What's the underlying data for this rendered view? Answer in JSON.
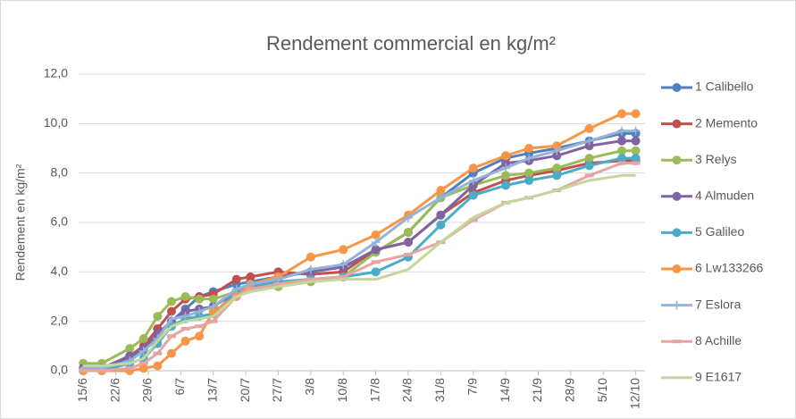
{
  "chart_data": {
    "type": "line",
    "title": "Rendement commercial en kg/m²",
    "ylabel": "Rendement en kg/m²",
    "x": [
      "15/6",
      "19/6",
      "25/6",
      "28/6",
      "1/7",
      "4/7",
      "7/7",
      "10/7",
      "13/7",
      "18/7",
      "21/7",
      "27/7",
      "3/8",
      "10/8",
      "17/8",
      "24/8",
      "31/8",
      "7/9",
      "14/9",
      "19/9",
      "25/9",
      "2/10",
      "9/10",
      "12/10"
    ],
    "xlim": [
      "14/6",
      "14/10"
    ],
    "xticks": [
      "15/6",
      "22/6",
      "29/6",
      "6/7",
      "13/7",
      "20/7",
      "27/7",
      "3/8",
      "10/8",
      "17/8",
      "24/8",
      "31/8",
      "7/9",
      "14/9",
      "21/9",
      "28/9",
      "5/10",
      "12/10"
    ],
    "ylim": [
      0,
      12
    ],
    "yticks": [
      {
        "value": 0,
        "label": "0,0"
      },
      {
        "value": 2,
        "label": "2,0"
      },
      {
        "value": 4,
        "label": "4,0"
      },
      {
        "value": 6,
        "label": "6,0"
      },
      {
        "value": 8,
        "label": "8,0"
      },
      {
        "value": 10,
        "label": "10,0"
      },
      {
        "value": 12,
        "label": "12,0"
      }
    ],
    "grid": true,
    "legend": "right",
    "series": [
      {
        "name": "1 Calibello",
        "color": "#4f81bd",
        "marker": "circle",
        "values": [
          0.1,
          0.1,
          0.5,
          0.8,
          1.4,
          2.0,
          2.5,
          3.0,
          3.2,
          3.5,
          3.6,
          3.8,
          4.0,
          4.2,
          4.8,
          5.6,
          7.0,
          8.0,
          8.6,
          8.8,
          9.0,
          9.3,
          9.6,
          9.6
        ]
      },
      {
        "name": "2 Memento",
        "color": "#c0504d",
        "marker": "circle",
        "values": [
          0.1,
          0.1,
          0.6,
          1.0,
          1.7,
          2.4,
          2.9,
          3.0,
          3.1,
          3.7,
          3.8,
          4.0,
          3.9,
          4.0,
          4.9,
          5.2,
          6.3,
          7.2,
          7.7,
          7.9,
          8.1,
          8.4,
          8.5,
          8.5
        ]
      },
      {
        "name": "3 Relys",
        "color": "#9bbb59",
        "marker": "circle",
        "values": [
          0.3,
          0.3,
          0.9,
          1.3,
          2.2,
          2.8,
          3.0,
          2.9,
          2.9,
          3.2,
          3.4,
          3.4,
          3.6,
          3.8,
          4.8,
          5.6,
          7.0,
          7.5,
          7.9,
          8.0,
          8.2,
          8.6,
          8.9,
          8.9
        ]
      },
      {
        "name": "4 Almuden",
        "color": "#8064a2",
        "marker": "circle",
        "values": [
          0.1,
          0.1,
          0.6,
          0.9,
          1.5,
          2.0,
          2.4,
          2.5,
          2.6,
          3.2,
          3.5,
          3.8,
          4.0,
          4.2,
          4.9,
          5.2,
          6.3,
          7.5,
          8.4,
          8.5,
          8.7,
          9.1,
          9.3,
          9.3
        ]
      },
      {
        "name": "5 Galileo",
        "color": "#4bacc6",
        "marker": "circle",
        "values": [
          0.0,
          0.0,
          0.3,
          0.5,
          1.1,
          1.8,
          2.1,
          2.2,
          2.3,
          3.2,
          3.4,
          3.6,
          3.7,
          3.8,
          4.0,
          4.6,
          5.9,
          7.1,
          7.5,
          7.7,
          7.9,
          8.3,
          8.6,
          8.6
        ]
      },
      {
        "name": "6 Lw133266",
        "color": "#f79646",
        "marker": "circle",
        "values": [
          0.0,
          0.0,
          0.0,
          0.1,
          0.2,
          0.7,
          1.2,
          1.4,
          2.4,
          3.0,
          3.5,
          3.8,
          4.6,
          4.9,
          5.5,
          6.3,
          7.3,
          8.2,
          8.7,
          9.0,
          9.1,
          9.8,
          10.4,
          10.4
        ]
      },
      {
        "name": "7 Eslora",
        "color": "#95b3d7",
        "marker": "plus",
        "values": [
          0.1,
          0.1,
          0.4,
          0.8,
          1.3,
          2.1,
          2.2,
          2.4,
          2.6,
          3.3,
          3.5,
          3.7,
          4.1,
          4.3,
          5.2,
          6.2,
          7.0,
          7.7,
          8.2,
          8.6,
          8.9,
          9.3,
          9.7,
          9.7
        ]
      },
      {
        "name": "8 Achille",
        "color": "#e6a5a3",
        "marker": "dash",
        "values": [
          0.0,
          0.0,
          0.1,
          0.3,
          0.7,
          1.4,
          1.7,
          1.8,
          2.0,
          3.0,
          3.3,
          3.5,
          3.7,
          3.8,
          4.4,
          4.7,
          5.2,
          6.1,
          6.8,
          7.0,
          7.3,
          7.9,
          8.4,
          8.4
        ]
      },
      {
        "name": "9 E1617",
        "color": "#c3d69b",
        "marker": "none",
        "values": [
          0.2,
          0.2,
          0.3,
          0.5,
          1.2,
          1.8,
          2.0,
          2.1,
          2.2,
          3.0,
          3.2,
          3.4,
          3.6,
          3.7,
          3.7,
          4.1,
          5.2,
          6.2,
          6.8,
          7.0,
          7.3,
          7.7,
          7.9,
          7.9
        ]
      }
    ]
  }
}
